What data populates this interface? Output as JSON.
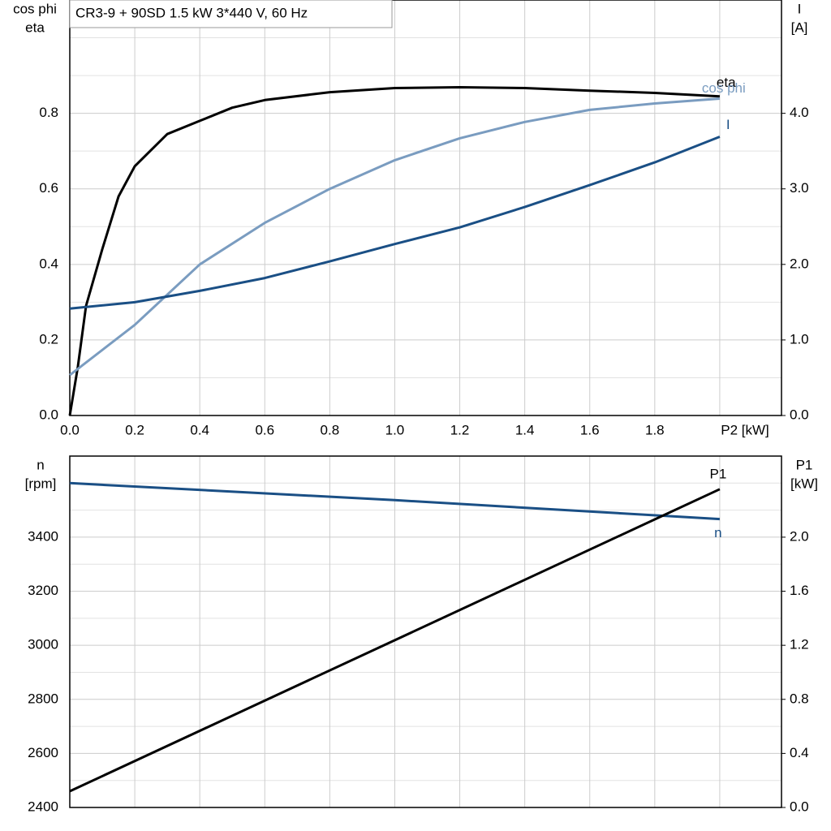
{
  "chart_data": [
    {
      "type": "line",
      "title": "CR3-9 + 90SD   1.5 kW   3*440 V, 60 Hz",
      "ylabel": [
        "cos phi",
        "eta"
      ],
      "y2label": [
        "I",
        "[A]"
      ],
      "xlabel": "P2 [kW]",
      "xlim": [
        0,
        2.19
      ],
      "xticks": [
        {
          "value": 0,
          "label": "0.0"
        },
        0.2,
        0.4,
        0.6,
        0.8,
        {
          "value": 1,
          "label": "1.0"
        },
        1.2,
        1.4,
        1.6,
        1.8,
        2
      ],
      "show_xtick_labels": true,
      "ylim": [
        0,
        1.1
      ],
      "yticks": [
        {
          "value": 0,
          "label": "0.0"
        },
        0.2,
        0.4,
        0.6,
        0.8
      ],
      "yminor": [
        0.1,
        0.3,
        0.5,
        0.7,
        0.9,
        1
      ],
      "y2lim": [
        0,
        5.5
      ],
      "y2ticks": [
        {
          "value": 0,
          "label": "0.0"
        },
        {
          "value": 1,
          "label": "1.0"
        },
        {
          "value": 2,
          "label": "2.0"
        },
        {
          "value": 3,
          "label": "3.0"
        },
        {
          "value": 4,
          "label": "4.0"
        }
      ],
      "grid": true,
      "series": [
        {
          "name": "eta",
          "color": "#000000",
          "axis": "y",
          "x": [
            0,
            0.025,
            0.05,
            0.1,
            0.15,
            0.2,
            0.3,
            0.4,
            0.5,
            0.6,
            0.8,
            1,
            1.2,
            1.4,
            1.6,
            1.8,
            2
          ],
          "values": [
            0,
            0.13,
            0.29,
            0.44,
            0.58,
            0.66,
            0.745,
            0.78,
            0.815,
            0.835,
            0.856,
            0.867,
            0.869,
            0.867,
            0.86,
            0.854,
            0.845
          ]
        },
        {
          "name": "cos phi",
          "color": "#7a9cc0",
          "axis": "y",
          "x": [
            0,
            0.2,
            0.4,
            0.6,
            0.8,
            1,
            1.2,
            1.4,
            1.6,
            1.8,
            2
          ],
          "values": [
            0.107,
            0.24,
            0.4,
            0.51,
            0.6,
            0.676,
            0.734,
            0.777,
            0.809,
            0.826,
            0.839
          ]
        },
        {
          "name": "I",
          "color": "#1a4f85",
          "axis": "y2",
          "x": [
            0,
            0.2,
            0.4,
            0.6,
            0.8,
            1,
            1.2,
            1.4,
            1.6,
            1.8,
            2
          ],
          "values": [
            1.415,
            1.5,
            1.65,
            1.82,
            2.04,
            2.27,
            2.49,
            2.76,
            3.05,
            3.35,
            3.69
          ]
        }
      ]
    },
    {
      "type": "line",
      "ylabel": [
        "n",
        "[rpm]"
      ],
      "y2label": [
        "P1",
        "[kW]"
      ],
      "xlim": [
        0,
        2.19
      ],
      "xticks": [
        0,
        0.2,
        0.4,
        0.6,
        0.8,
        1,
        1.2,
        1.4,
        1.6,
        1.8,
        2
      ],
      "show_xtick_labels": false,
      "ylim": [
        2400,
        3700
      ],
      "yticks": [
        2400,
        2600,
        2800,
        3000,
        3200,
        3400
      ],
      "yminor": [
        2500,
        2700,
        2900,
        3100,
        3300,
        3500,
        3600
      ],
      "y2lim": [
        0,
        2.6
      ],
      "y2ticks": [
        {
          "value": 0,
          "label": "0.0"
        },
        0.4,
        0.8,
        1.2,
        1.6,
        {
          "value": 2,
          "label": "2.0"
        }
      ],
      "grid": true,
      "series": [
        {
          "name": "n",
          "color": "#1a4f85",
          "axis": "y",
          "x": [
            0,
            1,
            2
          ],
          "values": [
            3600,
            3537,
            3467
          ]
        },
        {
          "name": "P1",
          "color": "#000000",
          "axis": "y2",
          "x": [
            0,
            2
          ],
          "values": [
            0.12,
            2.355
          ]
        }
      ]
    }
  ]
}
